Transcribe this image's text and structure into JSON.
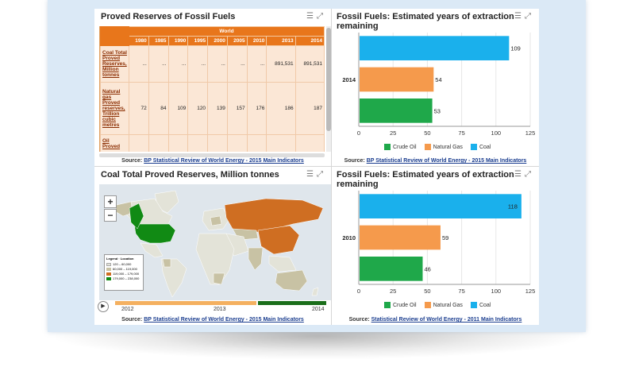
{
  "panels": {
    "table": {
      "title": "Proved Reserves of Fossil Fuels",
      "group_header": "World",
      "years": [
        "1980",
        "1985",
        "1990",
        "1995",
        "2000",
        "2005",
        "2010",
        "2013",
        "2014"
      ],
      "rows": [
        {
          "label": "Coal Total Proved Reserves, Million tonnes",
          "values": [
            "...",
            "...",
            "...",
            "...",
            "...",
            "...",
            "...",
            "891,531",
            "891,531"
          ]
        },
        {
          "label": "Natural gas Proved reserves, Trillion cubic metres",
          "values": [
            "72",
            "84",
            "109",
            "120",
            "139",
            "157",
            "176",
            "186",
            "187"
          ]
        },
        {
          "label": "Oil Proved",
          "values": [
            "",
            "",
            "",
            "",
            "",
            "",
            "",
            "",
            ""
          ]
        }
      ],
      "source_prefix": "Source:",
      "source_link": "BP Statistical Review of World Energy - 2015 Main Indicators"
    },
    "map": {
      "title": "Coal Total Proved Reserves, Million tonnes",
      "zoom_in": "+",
      "zoom_out": "−",
      "legend_title": "Legend · Location",
      "legend_items": [
        "120 – 60,000",
        "60,000 – 119,000",
        "119,000 – 179,000",
        "179,000 – 238,000"
      ],
      "timeline_labels": [
        "2012",
        "2013",
        "2014"
      ],
      "source_prefix": "Source:",
      "source_link": "BP Statistical Review of World Energy - 2015 Main Indicators"
    },
    "chart_top": {
      "title": "Fossil Fuels: Estimated years of extraction remaining",
      "source_prefix": "Source:",
      "source_link": "BP Statistical Review of World Energy - 2015 Main Indicators"
    },
    "chart_bottom": {
      "title": "Fossil Fuels: Estimated years of extraction remaining",
      "source_prefix": "Source:",
      "source_link": "Statistical Review of World Energy - 2011 Main Indicators"
    }
  },
  "tools_icons": [
    "menu-icon",
    "expand-icon"
  ],
  "colors": {
    "crude_oil": "#1fa84a",
    "natural_gas": "#f59a4c",
    "coal": "#1ab0ec",
    "table_header": "#e8761b",
    "map_tier1": "#e3e3d8",
    "map_tier2": "#c8c2a4",
    "map_tier3": "#cf6e22",
    "map_tier4": "#118a14"
  },
  "chart_data": [
    {
      "type": "bar",
      "orientation": "horizontal",
      "title": "Fossil Fuels: Estimated years of extraction remaining",
      "categories": [
        "2014"
      ],
      "series": [
        {
          "name": "Coal",
          "values": [
            109
          ]
        },
        {
          "name": "Natural Gas",
          "values": [
            54
          ]
        },
        {
          "name": "Crude Oil",
          "values": [
            53
          ]
        }
      ],
      "xticks": [
        "0",
        "25",
        "50",
        "75",
        "100",
        "125"
      ],
      "xlim": [
        0,
        125
      ],
      "legend": [
        "Crude Oil",
        "Natural Gas",
        "Coal"
      ],
      "legend_position": "bottom"
    },
    {
      "type": "bar",
      "orientation": "horizontal",
      "title": "Fossil Fuels: Estimated years of extraction remaining",
      "categories": [
        "2010"
      ],
      "series": [
        {
          "name": "Coal",
          "values": [
            118
          ]
        },
        {
          "name": "Natural Gas",
          "values": [
            59
          ]
        },
        {
          "name": "Crude Oil",
          "values": [
            46
          ]
        }
      ],
      "xticks": [
        "0",
        "25",
        "50",
        "75",
        "100",
        "125"
      ],
      "xlim": [
        0,
        125
      ],
      "legend": [
        "Crude Oil",
        "Natural Gas",
        "Coal"
      ],
      "legend_position": "bottom"
    }
  ]
}
